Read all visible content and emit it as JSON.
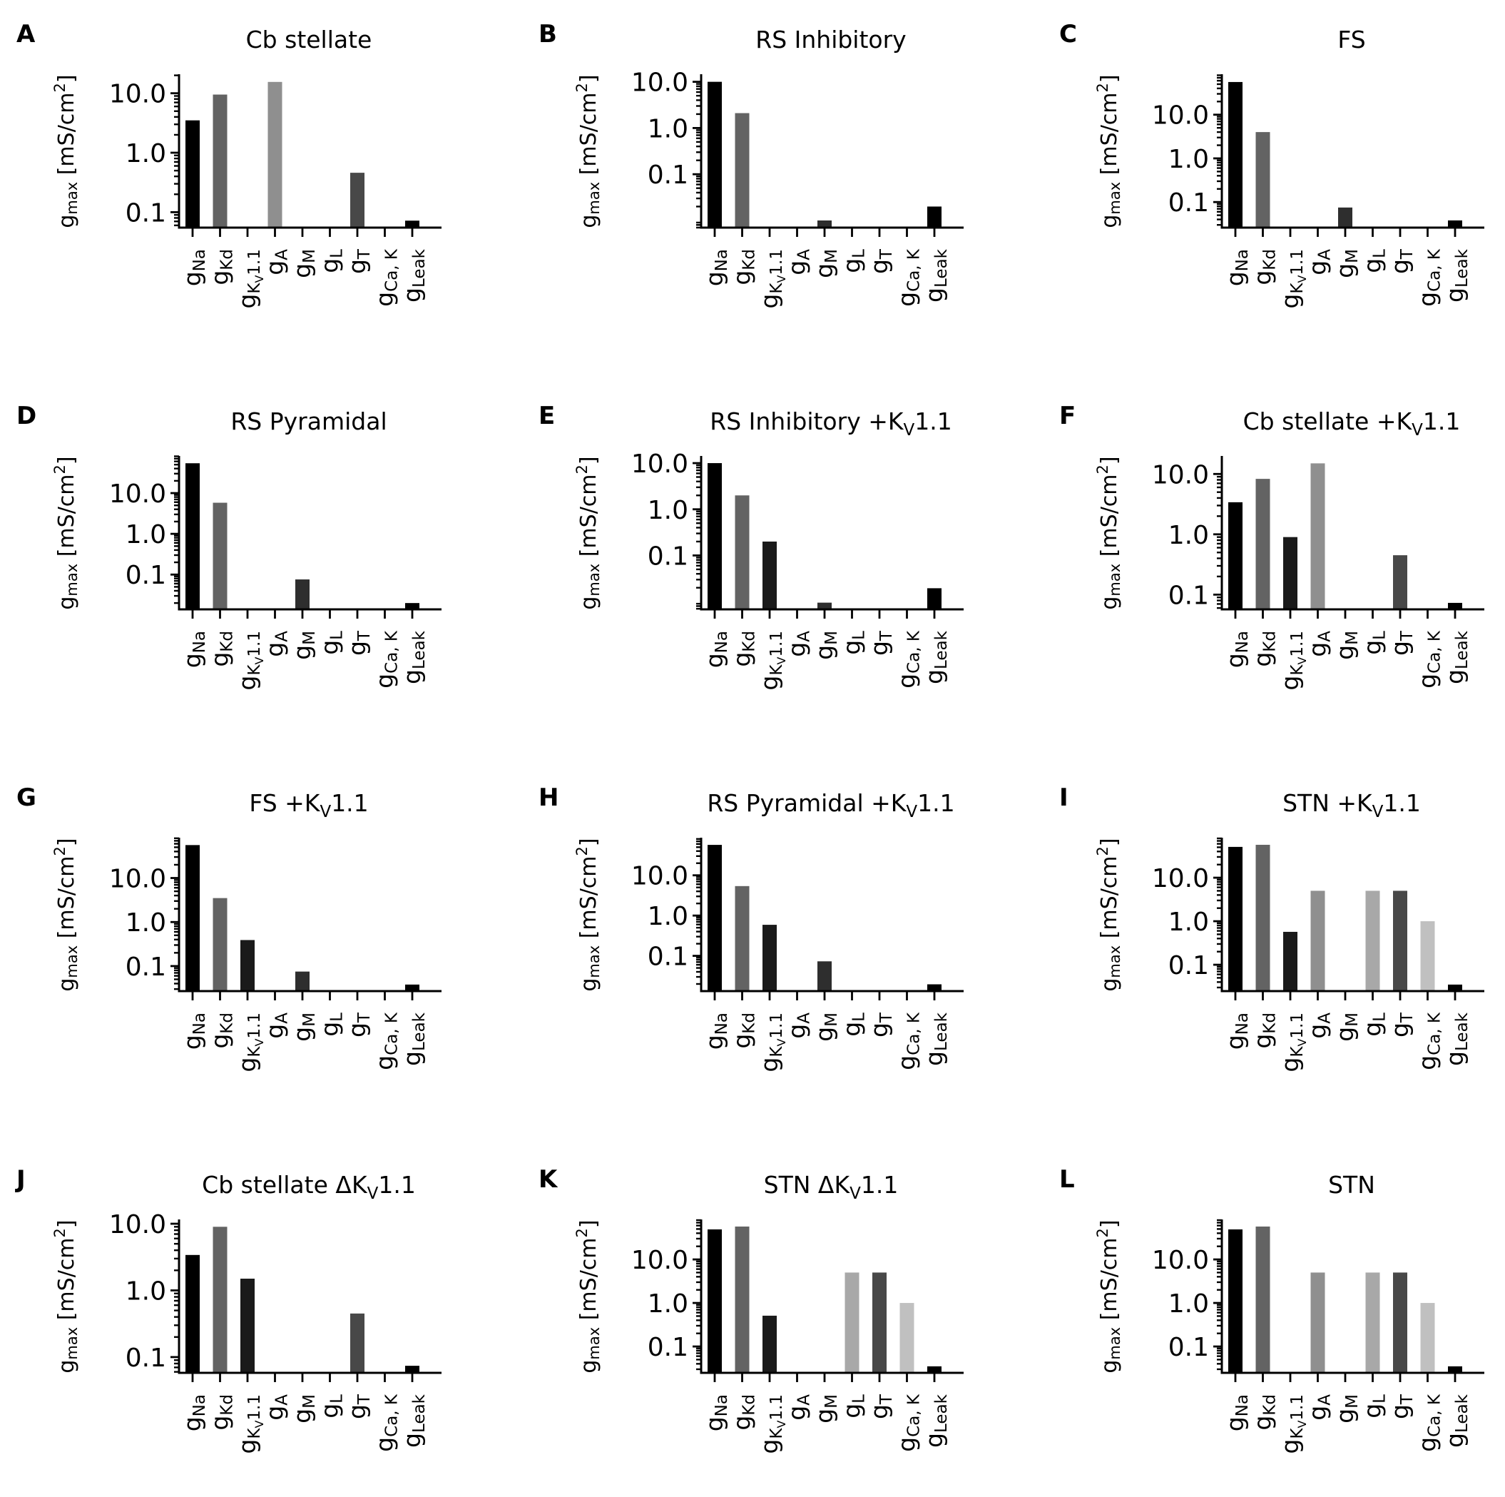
{
  "figure": {
    "ylabel_main": "g",
    "ylabel_sub": "max",
    "ylabel_unit": " [mS/cm",
    "ylabel_sup": "2",
    "ylabel_close": "]"
  },
  "chart_data": [
    {
      "type": "bar",
      "panel": "A",
      "title": "Cb stellate",
      "title_sub": "",
      "title_after": "",
      "yscale": "log",
      "ylim": [
        0.055,
        20.9
      ],
      "yticks": [
        "10.0",
        "1.0",
        "0.1"
      ],
      "ytick_values": [
        10,
        1,
        0.1
      ],
      "categories": [
        "Na",
        "Kd",
        "Kv1.1",
        "A",
        "M",
        "L",
        "T",
        "Ca,K",
        "Leak"
      ],
      "values": [
        3.5,
        9.5,
        0,
        15.5,
        0,
        0,
        0.46,
        0,
        0.072
      ]
    },
    {
      "type": "bar",
      "panel": "B",
      "title": "RS Inhibitory",
      "title_sub": "",
      "title_after": "",
      "yscale": "log",
      "ylim": [
        0.007,
        14.6
      ],
      "yticks": [
        "10.0",
        "1.0",
        "0.1"
      ],
      "ytick_values": [
        10,
        1,
        0.1
      ],
      "categories": [
        "Na",
        "Kd",
        "Kv1.1",
        "A",
        "M",
        "L",
        "T",
        "Ca,K",
        "Leak"
      ],
      "values": [
        10,
        2.1,
        0,
        0,
        0.01,
        0,
        0,
        0,
        0.02
      ]
    },
    {
      "type": "bar",
      "panel": "C",
      "title": "FS",
      "title_sub": "",
      "title_after": "",
      "yscale": "log",
      "ylim": [
        0.026,
        84.5
      ],
      "yticks": [
        "10.0",
        "1.0",
        "0.1"
      ],
      "ytick_values": [
        10,
        1,
        0.1
      ],
      "categories": [
        "Na",
        "Kd",
        "Kv1.1",
        "A",
        "M",
        "L",
        "T",
        "Ca,K",
        "Leak"
      ],
      "values": [
        56,
        4.0,
        0,
        0,
        0.075,
        0,
        0,
        0,
        0.038
      ]
    },
    {
      "type": "bar",
      "panel": "D",
      "title": "RS Pyramidal",
      "title_sub": "",
      "title_after": "",
      "yscale": "log",
      "ylim": [
        0.014,
        81.6
      ],
      "yticks": [
        "10.0",
        "1.0",
        "0.1"
      ],
      "ytick_values": [
        10,
        1,
        0.1
      ],
      "categories": [
        "Na",
        "Kd",
        "Kv1.1",
        "A",
        "M",
        "L",
        "T",
        "Ca,K",
        "Leak"
      ],
      "values": [
        54,
        5.8,
        0,
        0,
        0.076,
        0,
        0,
        0,
        0.02
      ]
    },
    {
      "type": "bar",
      "panel": "E",
      "title": "RS Inhibitory +K",
      "title_sub": "V",
      "title_after": "1.1",
      "yscale": "log",
      "ylim": [
        0.0068,
        14.3
      ],
      "yticks": [
        "10.0",
        "1.0",
        "0.1"
      ],
      "ytick_values": [
        10,
        1,
        0.1
      ],
      "categories": [
        "Na",
        "Kd",
        "Kv1.1",
        "A",
        "M",
        "L",
        "T",
        "Ca,K",
        "Leak"
      ],
      "values": [
        10,
        2.0,
        0.2,
        0,
        0.0095,
        0,
        0,
        0,
        0.0195
      ]
    },
    {
      "type": "bar",
      "panel": "F",
      "title": "Cb stellate +K",
      "title_sub": "V",
      "title_after": "1.1",
      "yscale": "log",
      "ylim": [
        0.057,
        19.9
      ],
      "yticks": [
        "10.0",
        "1.0",
        "0.1"
      ],
      "ytick_values": [
        10,
        1,
        0.1
      ],
      "categories": [
        "Na",
        "Kd",
        "Kv1.1",
        "A",
        "M",
        "L",
        "T",
        "Ca,K",
        "Leak"
      ],
      "values": [
        3.4,
        8.3,
        0.9,
        15,
        0,
        0,
        0.45,
        0,
        0.073
      ]
    },
    {
      "type": "bar",
      "panel": "G",
      "title": "FS +K",
      "title_sub": "V",
      "title_after": "1.1",
      "yscale": "log",
      "ylim": [
        0.027,
        82.4
      ],
      "yticks": [
        "10.0",
        "1.0",
        "0.1"
      ],
      "ytick_values": [
        10,
        1,
        0.1
      ],
      "categories": [
        "Na",
        "Kd",
        "Kv1.1",
        "A",
        "M",
        "L",
        "T",
        "Ca,K",
        "Leak"
      ],
      "values": [
        56,
        3.5,
        0.39,
        0,
        0.075,
        0,
        0,
        0,
        0.038
      ]
    },
    {
      "type": "bar",
      "panel": "H",
      "title": "RS Pyramidal +K",
      "title_sub": "V",
      "title_after": "1.1",
      "yscale": "log",
      "ylim": [
        0.0133,
        86
      ],
      "yticks": [
        "10.0",
        "1.0",
        "0.1"
      ],
      "ytick_values": [
        10,
        1,
        0.1
      ],
      "categories": [
        "Na",
        "Kd",
        "Kv1.1",
        "A",
        "M",
        "L",
        "T",
        "Ca,K",
        "Leak"
      ],
      "values": [
        57,
        5.4,
        0.59,
        0,
        0.073,
        0,
        0,
        0,
        0.0196
      ]
    },
    {
      "type": "bar",
      "panel": "I",
      "title": "STN +K",
      "title_sub": "V",
      "title_after": "1.1",
      "yscale": "log",
      "ylim": [
        0.0248,
        83
      ],
      "yticks": [
        "10.0",
        "1.0",
        "0.1"
      ],
      "ytick_values": [
        10,
        1,
        0.1
      ],
      "categories": [
        "Na",
        "Kd",
        "Kv1.1",
        "A",
        "M",
        "L",
        "T",
        "Ca,K",
        "Leak"
      ],
      "values": [
        51,
        57,
        0.57,
        5.0,
        0,
        5.0,
        5.0,
        1.0,
        0.035
      ]
    },
    {
      "type": "bar",
      "panel": "J",
      "title": "Cb stellate ΔK",
      "title_sub": "V",
      "title_after": "1.1",
      "yscale": "log",
      "ylim": [
        0.058,
        11.6
      ],
      "yticks": [
        "10.0",
        "1.0",
        "0.1"
      ],
      "ytick_values": [
        10,
        1,
        0.1
      ],
      "categories": [
        "Na",
        "Kd",
        "Kv1.1",
        "A",
        "M",
        "L",
        "T",
        "Ca,K",
        "Leak"
      ],
      "values": [
        3.4,
        9.0,
        1.5,
        0,
        0,
        0,
        0.45,
        0,
        0.074
      ]
    },
    {
      "type": "bar",
      "panel": "K",
      "title": "STN ΔK",
      "title_sub": "V",
      "title_after": "1.1",
      "yscale": "log",
      "ylim": [
        0.0248,
        83
      ],
      "yticks": [
        "10.0",
        "1.0",
        "0.1"
      ],
      "ytick_values": [
        10,
        1,
        0.1
      ],
      "categories": [
        "Na",
        "Kd",
        "Kv1.1",
        "A",
        "M",
        "L",
        "T",
        "Ca,K",
        "Leak"
      ],
      "values": [
        49,
        57,
        0.51,
        0,
        0,
        5.0,
        5.0,
        1.0,
        0.035
      ]
    },
    {
      "type": "bar",
      "panel": "L",
      "title": "STN",
      "title_sub": "",
      "title_after": "",
      "yscale": "log",
      "ylim": [
        0.0248,
        83
      ],
      "yticks": [
        "10.0",
        "1.0",
        "0.1"
      ],
      "ytick_values": [
        10,
        1,
        0.1
      ],
      "categories": [
        "Na",
        "Kd",
        "Kv1.1",
        "A",
        "M",
        "L",
        "T",
        "Ca,K",
        "Leak"
      ],
      "values": [
        49,
        57,
        0,
        5.0,
        0,
        5.0,
        5.0,
        1.0,
        0.035
      ]
    }
  ],
  "xtick_labels": [
    {
      "main": "g",
      "sub": "Na",
      "sub2": "",
      "after": ""
    },
    {
      "main": "g",
      "sub": "Kd",
      "sub2": "",
      "after": ""
    },
    {
      "main": "g",
      "sub": "K",
      "sub2": "V",
      "after": "1.1"
    },
    {
      "main": "g",
      "sub": "A",
      "sub2": "",
      "after": ""
    },
    {
      "main": "g",
      "sub": "M",
      "sub2": "",
      "after": ""
    },
    {
      "main": "g",
      "sub": "L",
      "sub2": "",
      "after": ""
    },
    {
      "main": "g",
      "sub": "T",
      "sub2": "",
      "after": ""
    },
    {
      "main": "g",
      "sub": "Ca, K",
      "sub2": "",
      "after": ""
    },
    {
      "main": "g",
      "sub": "Leak",
      "sub2": "",
      "after": ""
    }
  ],
  "bar_colors": [
    "#000000",
    "#636363",
    "#1a1a1a",
    "#8f8f8f",
    "#2e2e2e",
    "#a8a8a8",
    "#484848",
    "#c0c0c0",
    "#000000"
  ]
}
